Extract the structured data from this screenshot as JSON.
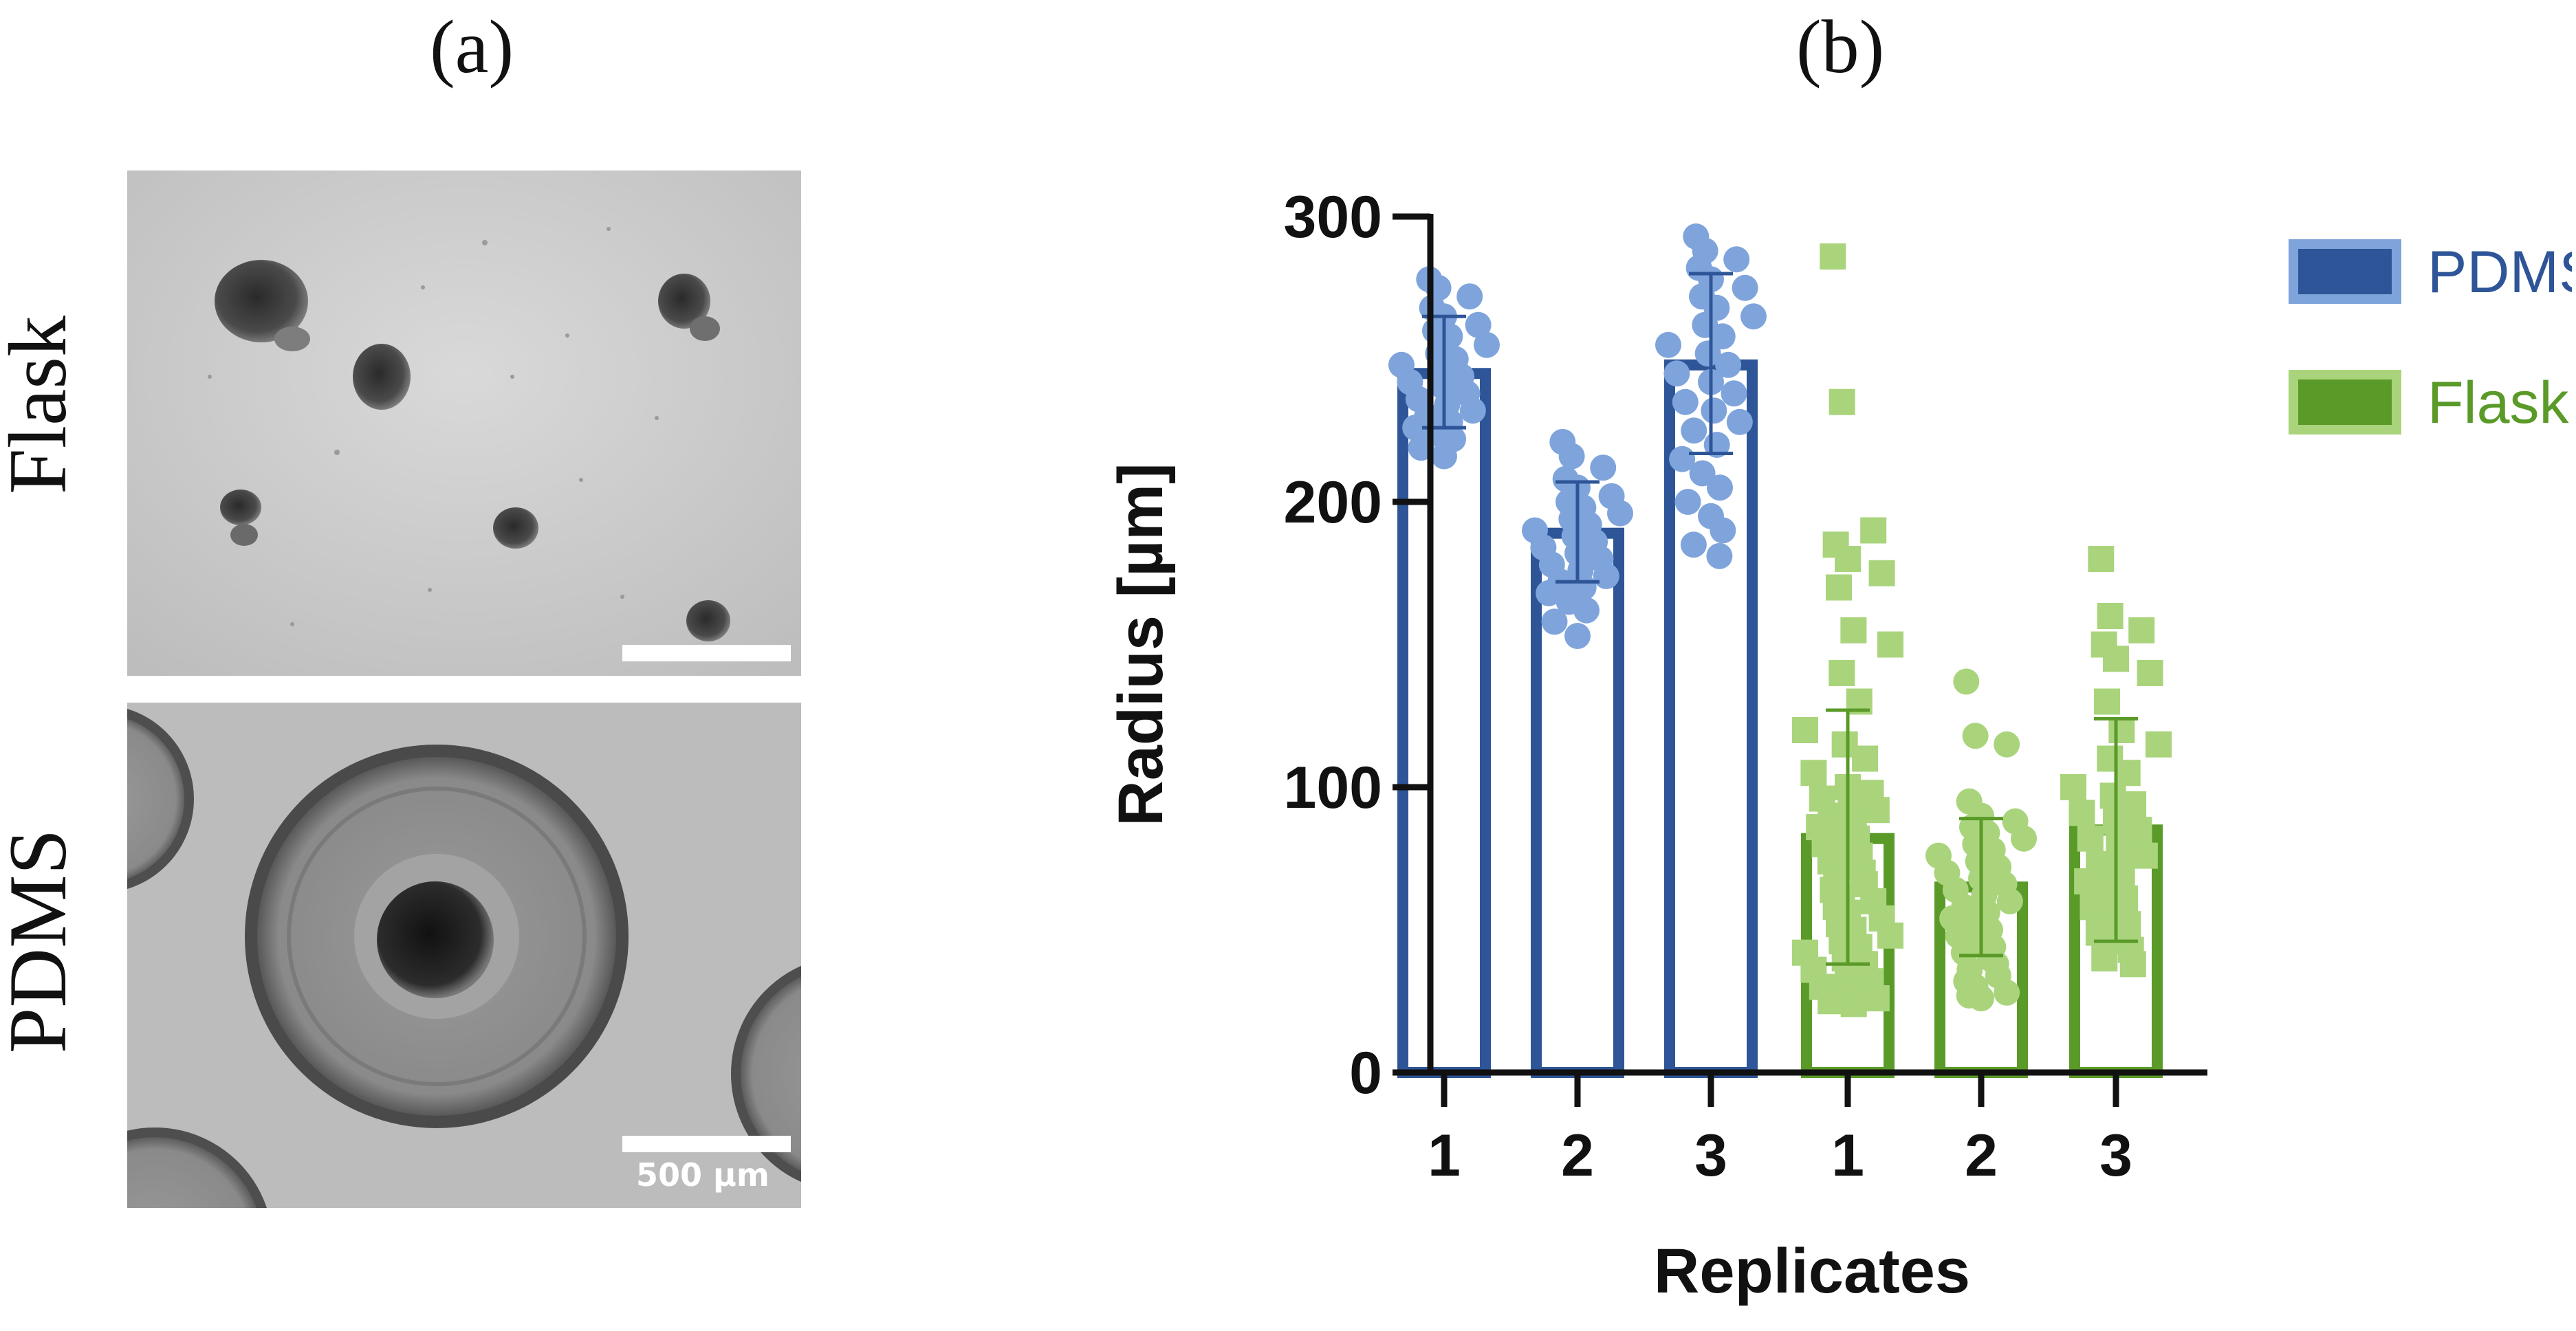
{
  "panels": {
    "a_label": "(a)",
    "b_label": "(b)",
    "row_labels": [
      "Flask",
      "PDMS"
    ],
    "scale_bar_text": "500 µm"
  },
  "colors": {
    "pdms_bar": "#2e5597",
    "pdms_points": "#7fa4db",
    "flask_bar": "#5a9a28",
    "flask_points": "#a9d47c"
  },
  "chart_data": {
    "type": "bar",
    "xlabel": "Replicates",
    "ylabel": "Radius [µm]",
    "ylim": [
      0,
      300
    ],
    "yticks": [
      0,
      100,
      200,
      300
    ],
    "categories": [
      "1",
      "2",
      "3",
      "1",
      "2",
      "3"
    ],
    "legend": {
      "placement": "top-right",
      "entries": [
        "PDMS",
        "Flask"
      ]
    },
    "series": [
      {
        "name": "PDMS",
        "bars": [
          {
            "category_index": 0,
            "mean": 245,
            "sd_low": 226,
            "sd_high": 265,
            "points": [
              278,
              275,
              272,
              268,
              265,
              262,
              260,
              258,
              255,
              252,
              250,
              248,
              246,
              244,
              242,
              240,
              238,
              236,
              234,
              232,
              230,
              228,
              226,
              224,
              222,
              219,
              216
            ]
          },
          {
            "category_index": 1,
            "mean": 189,
            "sd_low": 172,
            "sd_high": 207,
            "points": [
              221,
              216,
              212,
              208,
              205,
              202,
              200,
              198,
              196,
              194,
              192,
              190,
              188,
              186,
              184,
              182,
              180,
              178,
              176,
              174,
              172,
              170,
              168,
              165,
              162,
              158,
              153
            ]
          },
          {
            "category_index": 2,
            "mean": 248,
            "sd_low": 217,
            "sd_high": 280,
            "points": [
              293,
              288,
              285,
              282,
              278,
              275,
              272,
              268,
              265,
              262,
              258,
              255,
              252,
              248,
              245,
              242,
              238,
              235,
              232,
              228,
              225,
              220,
              215,
              210,
              205,
              200,
              195,
              190,
              185,
              181
            ]
          }
        ]
      },
      {
        "name": "Flask",
        "bars": [
          {
            "category_index": 3,
            "mean": 82,
            "sd_low": 38,
            "sd_high": 127,
            "points": [
              286,
              235,
              190,
              185,
              180,
              175,
              170,
              155,
              150,
              140,
              130,
              120,
              115,
              110,
              105,
              100,
              98,
              96,
              94,
              92,
              90,
              88,
              86,
              84,
              82,
              80,
              78,
              76,
              74,
              72,
              70,
              68,
              66,
              64,
              62,
              60,
              58,
              56,
              54,
              52,
              50,
              48,
              46,
              44,
              42,
              40,
              38,
              36,
              34,
              32,
              30,
              28,
              26,
              25,
              24
            ]
          },
          {
            "category_index": 4,
            "mean": 65,
            "sd_low": 41,
            "sd_high": 89,
            "points": [
              137,
              118,
              115,
              95,
              90,
              88,
              86,
              84,
              82,
              80,
              78,
              76,
              74,
              72,
              70,
              68,
              66,
              64,
              62,
              60,
              58,
              56,
              54,
              52,
              50,
              48,
              46,
              44,
              42,
              40,
              38,
              36,
              34,
              32,
              30,
              28,
              27,
              26
            ]
          },
          {
            "category_index": 5,
            "mean": 85,
            "sd_low": 46,
            "sd_high": 124,
            "points": [
              180,
              160,
              155,
              150,
              145,
              140,
              130,
              120,
              115,
              110,
              105,
              100,
              97,
              94,
              91,
              88,
              85,
              82,
              79,
              76,
              73,
              70,
              67,
              64,
              61,
              58,
              55,
              52,
              49,
              46,
              43,
              40,
              38
            ]
          }
        ]
      }
    ]
  }
}
